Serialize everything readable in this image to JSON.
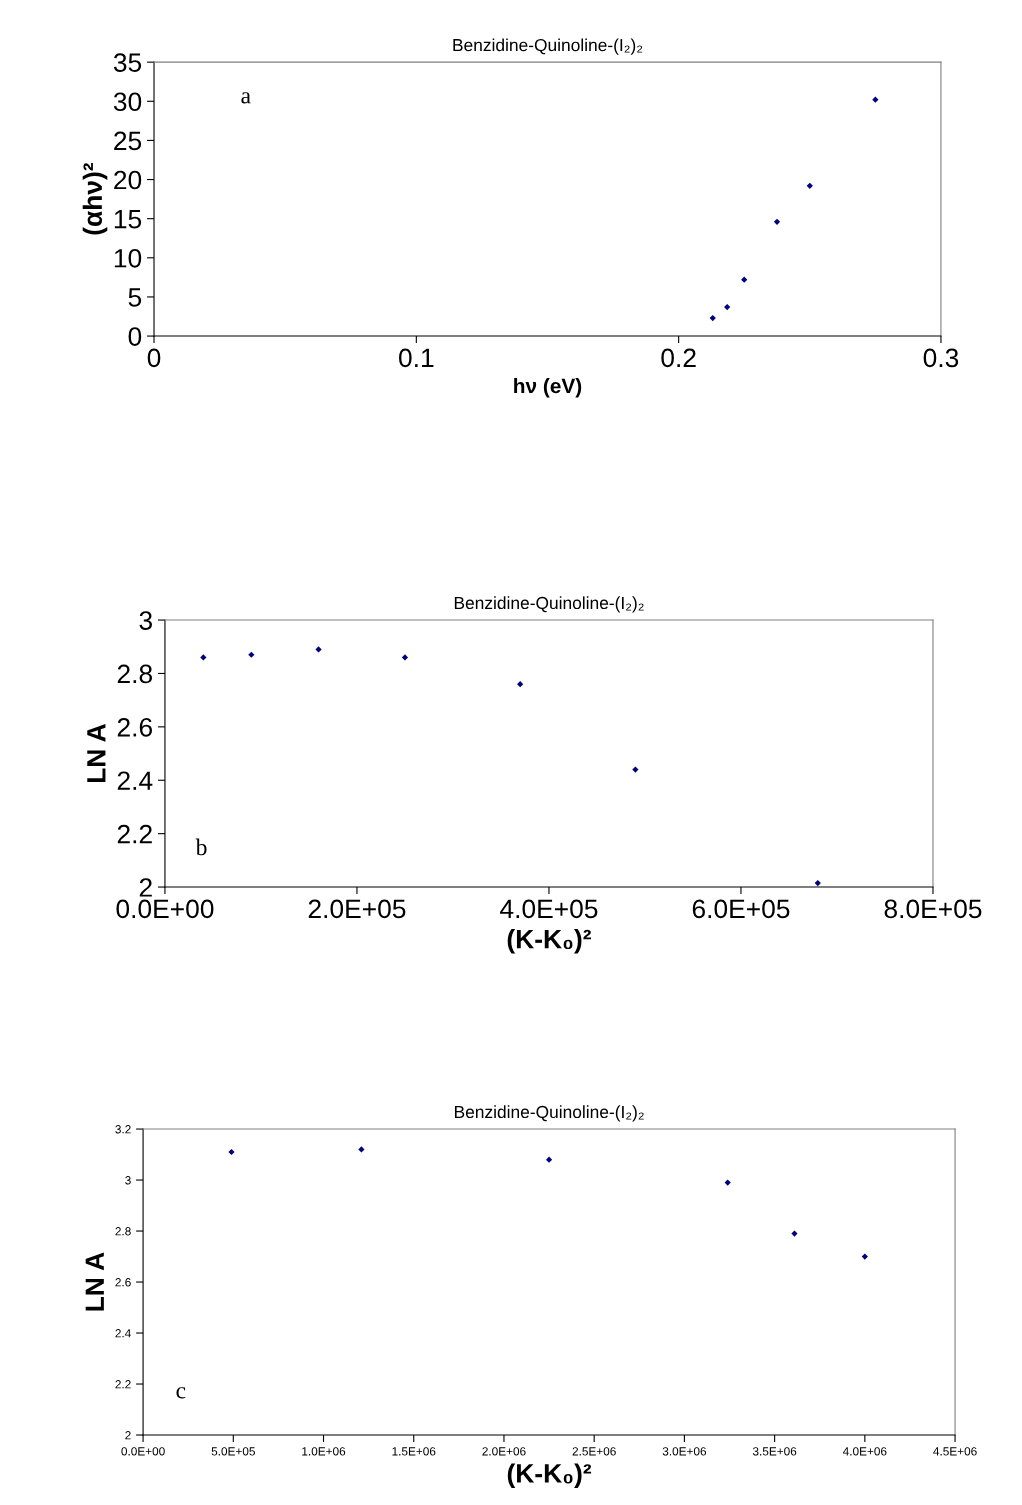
{
  "chart_data": [
    {
      "type": "scatter",
      "title": "Benzidine-Quinoline-(I₂)₂",
      "xlabel": "hν (eV)",
      "ylabel": "(αhν)²",
      "annotations": [
        "a"
      ],
      "marker": "diamond",
      "grid": false,
      "legend": false,
      "xlim": [
        0,
        0.3
      ],
      "xticks": [
        0,
        0.1,
        0.2,
        0.3
      ],
      "ylim": [
        0,
        35
      ],
      "yticks": [
        0,
        5,
        10,
        15,
        20,
        25,
        30,
        35
      ],
      "series": [
        {
          "color": "#000080",
          "x": [
            0.213,
            0.2185,
            0.225,
            0.2375,
            0.25,
            0.275
          ],
          "values": [
            2.3,
            3.7,
            7.2,
            14.6,
            19.2,
            30.2
          ]
        }
      ]
    },
    {
      "type": "scatter",
      "title": "Benzidine-Quinoline-(I₂)₂",
      "xlabel": "(K-K₀)²",
      "ylabel": "LN A",
      "annotations": [
        "b"
      ],
      "marker": "diamond",
      "grid": false,
      "legend": false,
      "xlim": [
        0,
        800000
      ],
      "xticks": [
        {
          "value": 0,
          "label": "0.0E+00"
        },
        {
          "value": 200000,
          "label": "2.0E+05"
        },
        {
          "value": 400000,
          "label": "4.0E+05"
        },
        {
          "value": 600000,
          "label": "6.0E+05"
        },
        {
          "value": 800000,
          "label": "8.0E+05"
        }
      ],
      "ylim": [
        2,
        3
      ],
      "yticks": [
        2,
        2.2,
        2.4,
        2.6,
        2.8,
        3
      ],
      "series": [
        {
          "color": "#000080",
          "x": [
            40000,
            90000,
            160000,
            250000,
            370000,
            490000,
            680000
          ],
          "values": [
            2.86,
            2.87,
            2.89,
            2.86,
            2.76,
            2.44,
            2.015
          ]
        }
      ]
    },
    {
      "type": "scatter",
      "title": "Benzidine-Quinoline-(I₂)₂",
      "xlabel": "(K-K₀)²",
      "ylabel": "LN A",
      "annotations": [
        "c"
      ],
      "marker": "diamond",
      "grid": false,
      "legend": false,
      "xlim": [
        0,
        4500000
      ],
      "xticks": [
        {
          "value": 0,
          "label": "0.0E+00"
        },
        {
          "value": 500000,
          "label": "5.0E+05"
        },
        {
          "value": 1000000,
          "label": "1.0E+06"
        },
        {
          "value": 1500000,
          "label": "1.5E+06"
        },
        {
          "value": 2000000,
          "label": "2.0E+06"
        },
        {
          "value": 2500000,
          "label": "2.5E+06"
        },
        {
          "value": 3000000,
          "label": "3.0E+06"
        },
        {
          "value": 3500000,
          "label": "3.5E+06"
        },
        {
          "value": 4000000,
          "label": "4.0E+06"
        },
        {
          "value": 4500000,
          "label": "4.5E+06"
        }
      ],
      "ylim": [
        2,
        3.2
      ],
      "yticks": [
        2,
        2.2,
        2.4,
        2.6,
        2.8,
        3,
        3.2
      ],
      "series": [
        {
          "color": "#000080",
          "x": [
            490000,
            1210000,
            2250000,
            3240000,
            3610000,
            4000000
          ],
          "values": [
            3.11,
            3.12,
            3.08,
            2.99,
            2.79,
            2.7
          ]
        }
      ]
    }
  ]
}
